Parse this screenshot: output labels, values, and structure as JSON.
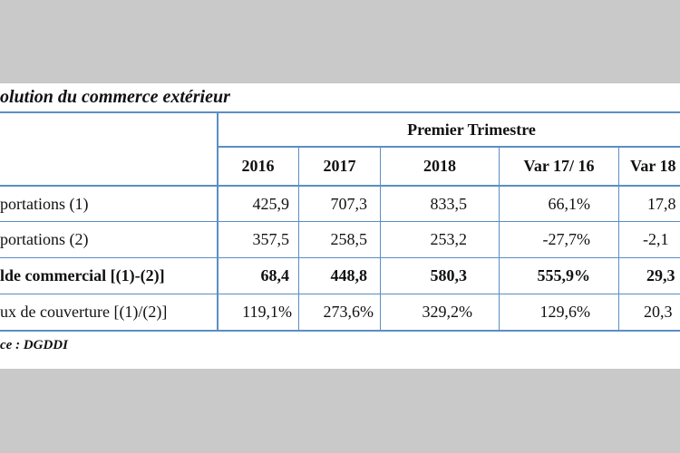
{
  "document": {
    "title": "olution du commerce extérieur",
    "source": "ce : DGDDI"
  },
  "table": {
    "group_header": "Premier Trimestre",
    "columns": [
      "2016",
      "2017",
      "2018",
      "Var 17/ 16",
      "Var 18"
    ],
    "rows": [
      {
        "label": "portations (1)",
        "cells": [
          "425,9",
          "707,3",
          "833,5",
          "66,1%",
          "17,8"
        ],
        "bold": false
      },
      {
        "label": "portations (2)",
        "cells": [
          "357,5",
          "258,5",
          "253,2",
          "-27,7%",
          "-2,1"
        ],
        "bold": false
      },
      {
        "label": "lde commercial [(1)-(2)]",
        "cells": [
          "68,4",
          "448,8",
          "580,3",
          "555,9%",
          "29,3"
        ],
        "bold": true
      },
      {
        "label": "ux de couverture [(1)/(2)]",
        "cells": [
          "119,1%",
          "273,6%",
          "329,2%",
          "129,6%",
          "20,3"
        ],
        "bold": false
      }
    ]
  },
  "colors": {
    "rule": "#5b8ec4",
    "background": "#c9c9c9",
    "paper": "#ffffff"
  }
}
